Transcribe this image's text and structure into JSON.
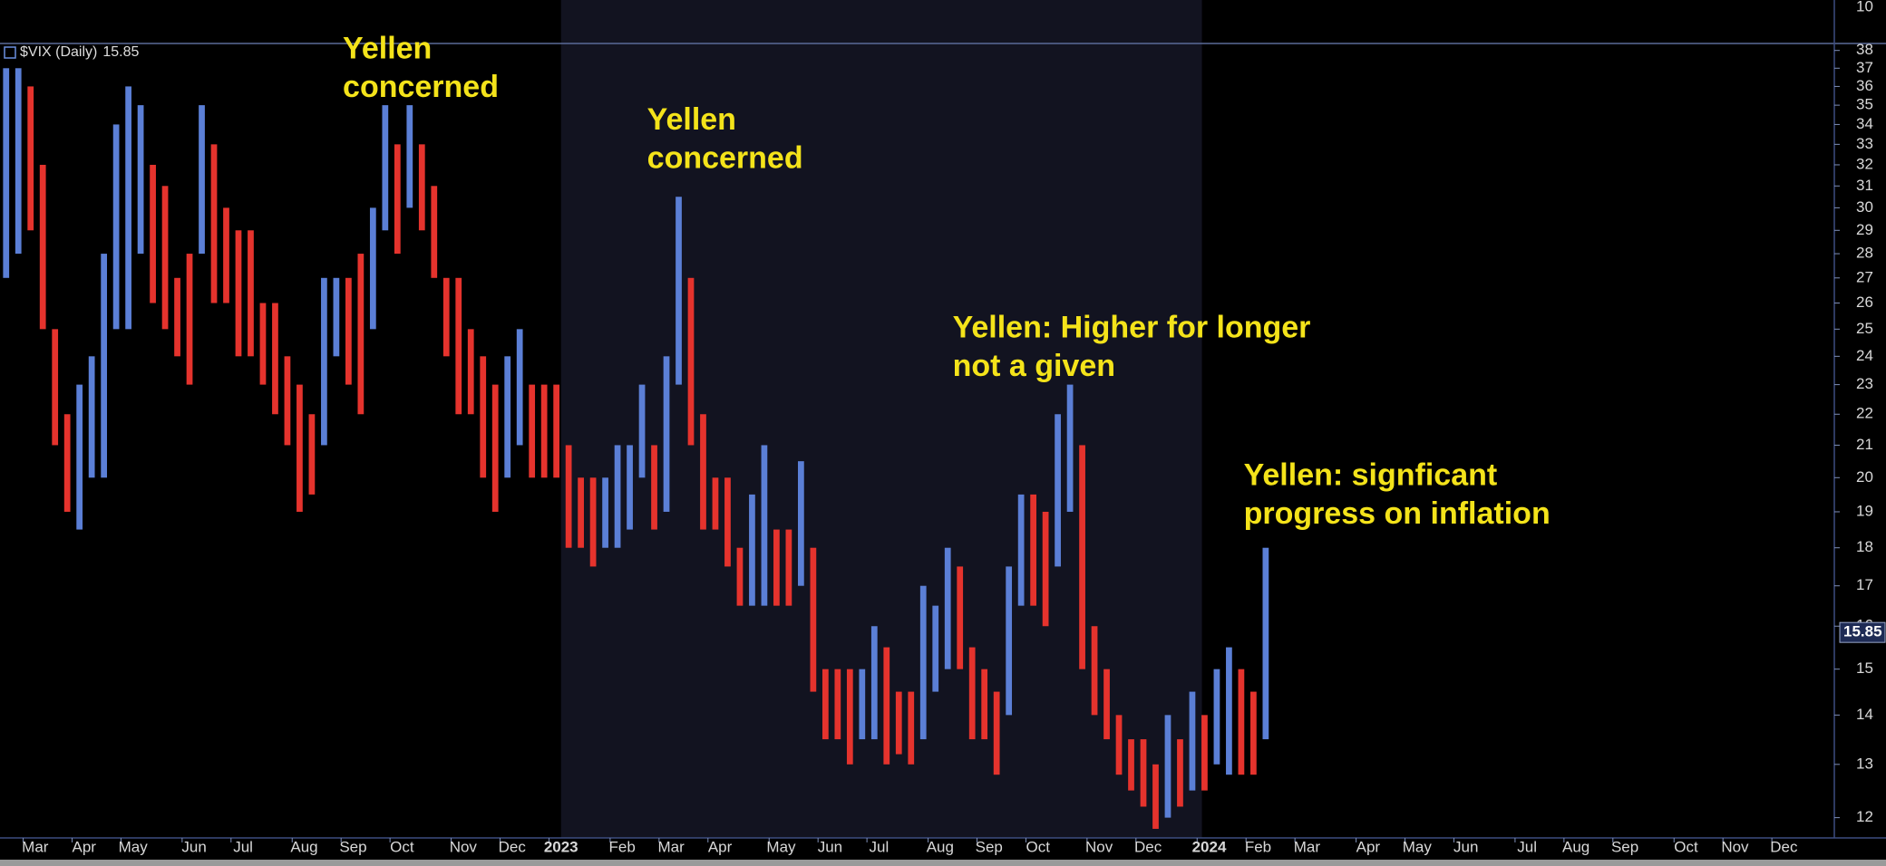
{
  "chart_data": {
    "type": "range-bar",
    "title": "$VIX (Daily)",
    "last_value": 15.85,
    "log_scale": true,
    "up_color": "#5b7fd6",
    "down_color": "#e5332d",
    "ylim": [
      11.64,
      38.4
    ],
    "yticks": [
      12,
      13,
      14,
      15,
      16,
      17,
      18,
      19,
      20,
      21,
      22,
      23,
      24,
      25,
      26,
      27,
      28,
      29,
      30,
      31,
      32,
      33,
      34,
      35,
      36,
      37,
      38
    ],
    "upper_yticks": [
      10
    ],
    "categories": [
      null,
      "Mar",
      null,
      null,
      null,
      "Apr",
      null,
      null,
      null,
      "May",
      null,
      null,
      null,
      null,
      "Jun",
      null,
      null,
      null,
      "Jul",
      null,
      null,
      null,
      null,
      "Aug",
      null,
      null,
      null,
      "Sep",
      null,
      null,
      null,
      "Oct",
      null,
      null,
      null,
      null,
      "Nov",
      null,
      null,
      null,
      "Dec",
      null,
      null,
      null,
      "2023",
      null,
      null,
      null,
      null,
      "Feb",
      null,
      null,
      null,
      "Mar",
      null,
      null,
      null,
      "Apr",
      null,
      null,
      null,
      null,
      "May",
      null,
      null,
      null,
      "Jun",
      null,
      null,
      null,
      "Jul",
      null,
      null,
      null,
      null,
      "Aug",
      null,
      null,
      null,
      "Sep",
      null,
      null,
      null,
      "Oct",
      null,
      null,
      null,
      null,
      "Nov",
      null,
      null,
      null,
      "Dec",
      null,
      null,
      null,
      null,
      "2024",
      null,
      null,
      null,
      "Feb",
      null,
      null,
      null,
      "Mar",
      null,
      null,
      null,
      null,
      "Apr",
      null,
      null,
      null,
      "May",
      null,
      null,
      null,
      "Jun",
      null,
      null,
      null,
      null,
      "Jul",
      null,
      null,
      null,
      "Aug",
      null,
      null,
      null,
      "Sep",
      null,
      null,
      null,
      null,
      "Oct",
      null,
      null,
      null,
      "Nov",
      null,
      null,
      null,
      "Dec",
      null,
      null,
      null,
      null,
      null
    ],
    "high": [
      37,
      37,
      36,
      32,
      25,
      22,
      23,
      24,
      28,
      34,
      36,
      35,
      32,
      31,
      27,
      28,
      35,
      33,
      30,
      29,
      29,
      26,
      26,
      24,
      23,
      22,
      27,
      27,
      27,
      28,
      30,
      35,
      33,
      35,
      33,
      31,
      27,
      27,
      25,
      24,
      23,
      24,
      25,
      23,
      23,
      23,
      21,
      20,
      20,
      20,
      21,
      21,
      23,
      21,
      24,
      30.5,
      27,
      22,
      20,
      20,
      18,
      19.5,
      21,
      18.5,
      18.5,
      20.5,
      18,
      15,
      15,
      15,
      15,
      16,
      15.5,
      14.5,
      14.5,
      17,
      16.5,
      18,
      17.5,
      15.5,
      15,
      14.5,
      17.5,
      19.5,
      19.5,
      19,
      22,
      23,
      21,
      16,
      15,
      14,
      13.5,
      13.5,
      13,
      14,
      13.5,
      14.5,
      14,
      15,
      15.5,
      15,
      14.5,
      18,
      null,
      null,
      null,
      null,
      null,
      null,
      null,
      null,
      null,
      null,
      null,
      null,
      null,
      null,
      null,
      null,
      null,
      null,
      null,
      null,
      null,
      null,
      null,
      null,
      null,
      null,
      null,
      null,
      null,
      null,
      null,
      null,
      null,
      null,
      null,
      null,
      null,
      null,
      null,
      null,
      null,
      null,
      null,
      null,
      null,
      null
    ],
    "low": [
      27,
      28,
      29,
      25,
      21,
      19,
      18.5,
      20,
      20,
      25,
      25,
      28,
      26,
      25,
      24,
      23,
      28,
      26,
      26,
      24,
      24,
      23,
      22,
      21,
      19,
      19.5,
      21,
      24,
      23,
      22,
      25,
      29,
      28,
      30,
      29,
      27,
      24,
      22,
      22,
      20,
      19,
      20,
      21,
      20,
      20,
      20,
      18,
      18,
      17.5,
      18,
      18,
      18.5,
      20,
      18.5,
      19,
      23,
      21,
      18.5,
      18.5,
      17.5,
      16.5,
      16.5,
      16.5,
      16.5,
      16.5,
      17,
      14.5,
      13.5,
      13.5,
      13,
      13.5,
      13.5,
      13,
      13.2,
      13,
      13.5,
      14.5,
      15,
      15,
      13.5,
      13.5,
      12.8,
      14,
      16.5,
      16.5,
      16,
      17.5,
      19,
      15,
      14,
      13.5,
      12.8,
      12.5,
      12.2,
      11.8,
      12,
      12.2,
      12.5,
      12.5,
      13,
      12.8,
      12.8,
      12.8,
      13.5,
      null,
      null,
      null,
      null,
      null,
      null,
      null,
      null,
      null,
      null,
      null,
      null,
      null,
      null,
      null,
      null,
      null,
      null,
      null,
      null,
      null,
      null,
      null,
      null,
      null,
      null,
      null,
      null,
      null,
      null,
      null,
      null,
      null,
      null,
      null,
      null,
      null,
      null,
      null,
      null,
      null,
      null,
      null,
      null,
      null,
      null
    ],
    "annotations": [
      {
        "lines": [
          "Yellen",
          "concerned"
        ]
      },
      {
        "lines": [
          "Yellen",
          "concerned"
        ]
      },
      {
        "lines": [
          "Yellen: Higher for longer",
          "not a given"
        ]
      },
      {
        "lines": [
          "Yellen: signficant",
          "progress on inflation"
        ]
      }
    ]
  }
}
